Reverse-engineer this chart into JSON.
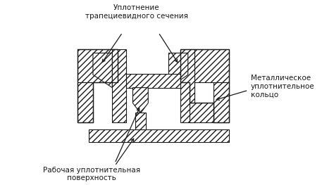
{
  "bg_color": "#ffffff",
  "line_color": "#1a1a1a",
  "label_top": "Уплотнение\nтрапециевидного сечения",
  "label_bottom": "Рабочая уплотнительная\nповерхность",
  "label_right": "Металлическое\nуплотнительное\nкольцо",
  "font_size": 7.5,
  "fig_width": 4.74,
  "fig_height": 2.63,
  "hatch": "////"
}
